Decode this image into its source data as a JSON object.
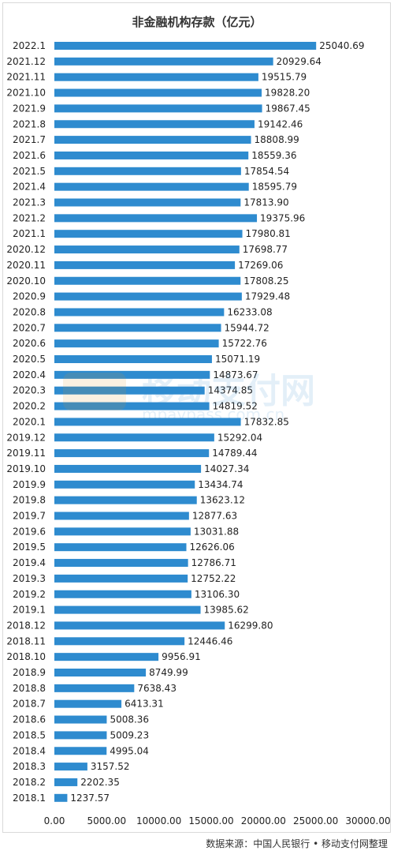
{
  "chart_data": {
    "type": "bar",
    "orientation": "horizontal",
    "title": "非金融机构存款（亿元）",
    "categories": [
      "2022.1",
      "2021.12",
      "2021.11",
      "2021.10",
      "2021.9",
      "2021.8",
      "2021.7",
      "2021.6",
      "2021.5",
      "2021.4",
      "2021.3",
      "2021.2",
      "2021.1",
      "2020.12",
      "2020.11",
      "2020.10",
      "2020.9",
      "2020.8",
      "2020.7",
      "2020.6",
      "2020.5",
      "2020.4",
      "2020.3",
      "2020.2",
      "2020.1",
      "2019.12",
      "2019.11",
      "2019.10",
      "2019.9",
      "2019.8",
      "2019.7",
      "2019.6",
      "2019.5",
      "2019.4",
      "2019.3",
      "2019.2",
      "2019.1",
      "2018.12",
      "2018.11",
      "2018.10",
      "2018.9",
      "2018.8",
      "2018.7",
      "2018.6",
      "2018.5",
      "2018.4",
      "2018.3",
      "2018.2",
      "2018.1"
    ],
    "values": [
      25040.69,
      20929.64,
      19515.79,
      19828.2,
      19867.45,
      19142.46,
      18808.99,
      18559.36,
      17854.54,
      18595.79,
      17813.9,
      19375.96,
      17980.81,
      17698.77,
      17269.06,
      17808.25,
      17929.48,
      16233.08,
      15944.72,
      15722.76,
      15071.19,
      14873.67,
      14374.85,
      14819.52,
      17832.85,
      15292.04,
      14789.44,
      14027.34,
      13434.74,
      13623.12,
      12877.63,
      13031.88,
      12626.06,
      12786.71,
      12752.22,
      13106.3,
      13985.62,
      16299.8,
      12446.46,
      9956.91,
      8749.99,
      7638.43,
      6413.31,
      5008.36,
      5009.23,
      4995.04,
      3157.52,
      2202.35,
      1237.57
    ],
    "value_labels": [
      "25040.69",
      "20929.64",
      "19515.79",
      "19828.20",
      "19867.45",
      "19142.46",
      "18808.99",
      "18559.36",
      "17854.54",
      "18595.79",
      "17813.90",
      "19375.96",
      "17980.81",
      "17698.77",
      "17269.06",
      "17808.25",
      "17929.48",
      "16233.08",
      "15944.72",
      "15722.76",
      "15071.19",
      "14873.67",
      "14374.85",
      "14819.52",
      "17832.85",
      "15292.04",
      "14789.44",
      "14027.34",
      "13434.74",
      "13623.12",
      "12877.63",
      "13031.88",
      "12626.06",
      "12786.71",
      "12752.22",
      "13106.30",
      "13985.62",
      "16299.80",
      "12446.46",
      "9956.91",
      "8749.99",
      "7638.43",
      "6413.31",
      "5008.36",
      "5009.23",
      "4995.04",
      "3157.52",
      "2202.35",
      "1237.57"
    ],
    "xlim": [
      0,
      30000
    ],
    "x_ticks": [
      "0.00",
      "5000.00",
      "10000.00",
      "15000.00",
      "20000.00",
      "25000.00",
      "30000.00"
    ],
    "grid": false,
    "bar_color": "#2e8bcf"
  },
  "watermark": {
    "brand": "移动支付网",
    "url": "mpaypass.com.cn"
  },
  "source_note": "数据来源：中国人民银行 • 移动支付网整理"
}
